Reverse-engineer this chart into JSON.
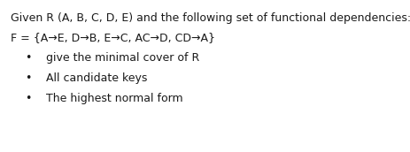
{
  "background_color": "#ffffff",
  "line1": "Given R (A, B, C, D, E) and the following set of functional dependencies:",
  "line2": "F = {A→E, D→B, E→C, AC→D, CD→A}",
  "bullet1": "give the minimal cover of R",
  "bullet2": "All candidate keys",
  "bullet3": "The highest normal form",
  "font_size_main": 9.0,
  "text_color": "#1a1a1a"
}
